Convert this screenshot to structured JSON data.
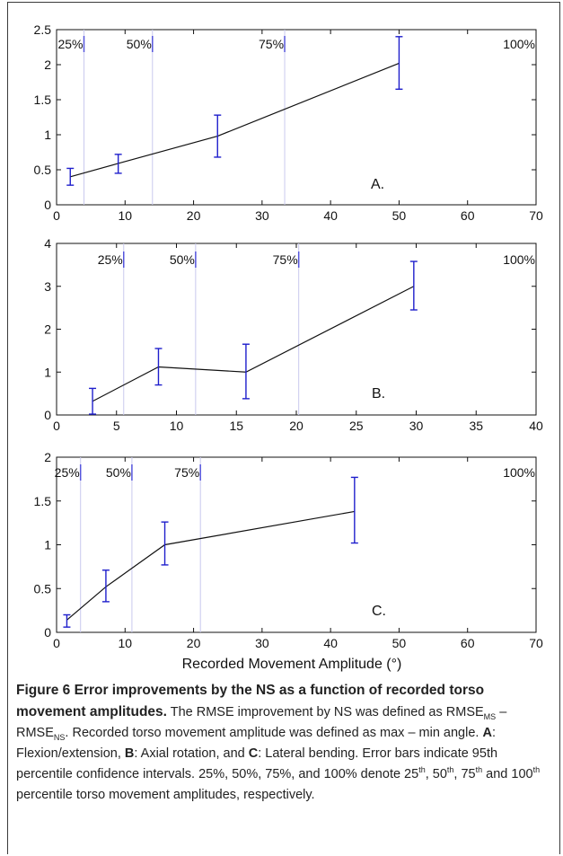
{
  "chart_data": [
    {
      "type": "line",
      "panel_label": "A.",
      "x": [
        2,
        9,
        23.5,
        50
      ],
      "values": [
        0.4,
        0.59,
        0.98,
        2.02
      ],
      "err_low": [
        0.28,
        0.45,
        0.68,
        1.65
      ],
      "err_high": [
        0.52,
        0.72,
        1.28,
        2.4
      ],
      "xlim": [
        0,
        70
      ],
      "ylim": [
        0,
        2.5
      ],
      "xticks": [
        "0",
        "10",
        "20",
        "30",
        "40",
        "50",
        "60",
        "70"
      ],
      "yticks": [
        "0",
        "0.5",
        "1",
        "1.5",
        "2",
        "2.5"
      ],
      "percentiles": [
        {
          "label": "25%",
          "x": 4
        },
        {
          "label": "50%",
          "x": 14
        },
        {
          "label": "75%",
          "x": 33.3
        },
        {
          "label": "100%",
          "x": 70
        }
      ]
    },
    {
      "type": "line",
      "panel_label": "B.",
      "x": [
        3,
        8.5,
        15.8,
        29.8
      ],
      "values": [
        0.32,
        1.12,
        1.0,
        3.0
      ],
      "err_low": [
        0.02,
        0.7,
        0.38,
        2.45
      ],
      "err_high": [
        0.62,
        1.55,
        1.65,
        3.58
      ],
      "xlim": [
        0,
        40
      ],
      "ylim": [
        0,
        4
      ],
      "xticks": [
        "0",
        "5",
        "10",
        "15",
        "20",
        "25",
        "30",
        "35",
        "40"
      ],
      "yticks": [
        "0",
        "1",
        "2",
        "3",
        "4"
      ],
      "percentiles": [
        {
          "label": "25%",
          "x": 5.6
        },
        {
          "label": "50%",
          "x": 11.6
        },
        {
          "label": "75%",
          "x": 20.2
        },
        {
          "label": "100%",
          "x": 40
        }
      ]
    },
    {
      "type": "line",
      "panel_label": "C.",
      "x": [
        1.5,
        7.2,
        15.8,
        43.5
      ],
      "values": [
        0.14,
        0.52,
        1.0,
        1.38
      ],
      "err_low": [
        0.06,
        0.35,
        0.77,
        1.02
      ],
      "err_high": [
        0.2,
        0.71,
        1.26,
        1.77
      ],
      "xlim": [
        0,
        70
      ],
      "ylim": [
        0,
        2
      ],
      "xticks": [
        "0",
        "10",
        "20",
        "30",
        "40",
        "50",
        "60",
        "70"
      ],
      "yticks": [
        "0",
        "0.5",
        "1",
        "1.5",
        "2"
      ],
      "xlabel": "Recorded Movement Amplitude  (°)",
      "percentiles": [
        {
          "label": "25%",
          "x": 3.5
        },
        {
          "label": "50%",
          "x": 11
        },
        {
          "label": "75%",
          "x": 21
        },
        {
          "label": "100%",
          "x": 70
        }
      ]
    }
  ],
  "colors": {
    "line": "#111111",
    "errorbar": "#1f1fcc",
    "percentile_line": "#c9c9ee",
    "percentile_mark": "#5555dd"
  },
  "caption": {
    "title": "Figure 6 Error improvements by the NS as a function of recorded torso movement amplitudes.",
    "s1": " The RMSE improvement by NS was defined as RMSE",
    "sub1": "MS",
    "s2": " –RMSE",
    "sub2": "NS",
    "s3": ". Recorded torso movement amplitude was defined as max – min angle. ",
    "bA": "A",
    "s4": ": Flexion/extension, ",
    "bB": "B",
    "s5": ": Axial rotation, and ",
    "bC": "C",
    "s6": ": Lateral bending. Error bars indicate 95th percentile confidence intervals. 25%, 50%, 75%, and 100% denote 25",
    "sup1": "th",
    "s7": ", 50",
    "sup2": "th",
    "s8": ", 75",
    "sup3": "th",
    "s9": " and 100",
    "sup4": "th",
    "s10": " percentile torso movement amplitudes, respectively."
  }
}
